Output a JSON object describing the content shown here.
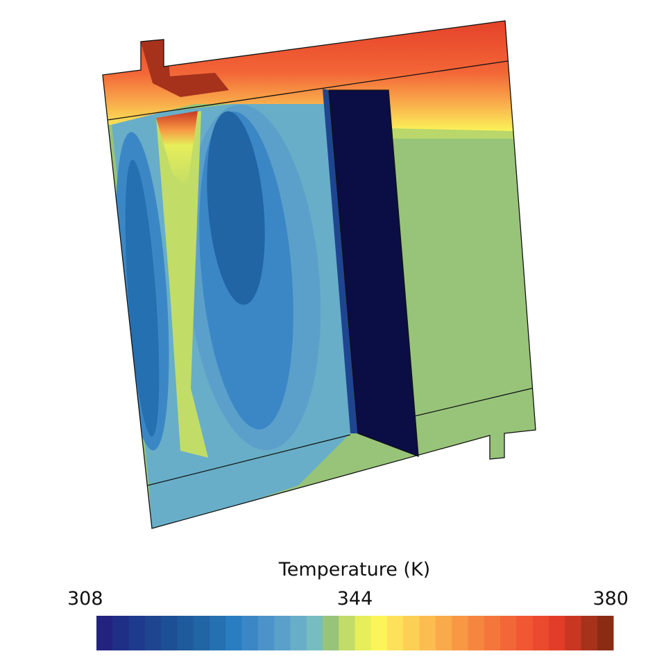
{
  "chart_data": {
    "type": "contour",
    "title": "Temperature (K)",
    "clim": [
      308,
      380
    ],
    "cticks": [
      308,
      344,
      380
    ],
    "colors": [
      "#23237f",
      "#1f2f86",
      "#1e3a8c",
      "#1f4590",
      "#1d4f95",
      "#1f5a9c",
      "#2165a5",
      "#2470b1",
      "#297dc0",
      "#3b87c6",
      "#4b93c9",
      "#5aa0cb",
      "#68aec8",
      "#76bcc0",
      "#98c47a",
      "#c2dc68",
      "#e6ee5a",
      "#fbf55a",
      "#fde15a",
      "#fccf55",
      "#fbbd4f",
      "#f9aa4a",
      "#f89844",
      "#f6863f",
      "#f5763b",
      "#f36637",
      "#f15733",
      "#ec4a2e",
      "#e23d28",
      "#c93723",
      "#a6321c",
      "#8b2b14"
    ]
  }
}
